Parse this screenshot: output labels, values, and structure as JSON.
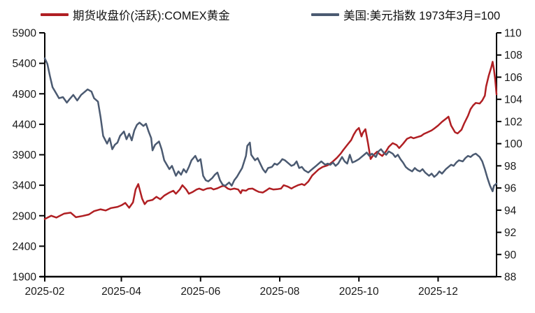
{
  "legend": {
    "item1": "期货收盘价(活跃):COMEX黄金",
    "item2": "美国:美元指数 1973年3月=100"
  },
  "chart_data": {
    "type": "line",
    "title": "",
    "grid": false,
    "legend_position": "top",
    "x_axis": {
      "unit": "days since 2025-02-01",
      "range": [
        0,
        348
      ],
      "ticks": [
        {
          "label": "2025-02",
          "day": 0
        },
        {
          "label": "2025-04",
          "day": 59
        },
        {
          "label": "2025-06",
          "day": 120
        },
        {
          "label": "2025-08",
          "day": 181
        },
        {
          "label": "2025-10",
          "day": 242
        },
        {
          "label": "2025-12",
          "day": 303
        }
      ]
    },
    "y_left": {
      "min": 1900,
      "max": 5900,
      "ticks": [
        1900,
        2400,
        2900,
        3400,
        3900,
        4400,
        4900,
        5400,
        5900
      ]
    },
    "y_right": {
      "min": 88,
      "max": 110,
      "ticks": [
        88,
        90,
        92,
        94,
        96,
        98,
        100,
        102,
        104,
        106,
        108,
        110
      ]
    },
    "series": [
      {
        "name": "期货收盘价(活跃):COMEX黄金",
        "axis": "left",
        "color": "#b01f23",
        "points": [
          [
            0,
            2845
          ],
          [
            5,
            2900
          ],
          [
            9,
            2870
          ],
          [
            15,
            2935
          ],
          [
            20,
            2950
          ],
          [
            24,
            2875
          ],
          [
            29,
            2895
          ],
          [
            34,
            2920
          ],
          [
            38,
            2975
          ],
          [
            43,
            3005
          ],
          [
            47,
            2985
          ],
          [
            51,
            3025
          ],
          [
            56,
            3045
          ],
          [
            59,
            3070
          ],
          [
            62,
            3110
          ],
          [
            65,
            3030
          ],
          [
            68,
            3120
          ],
          [
            70,
            3330
          ],
          [
            72,
            3420
          ],
          [
            75,
            3180
          ],
          [
            77,
            3090
          ],
          [
            79,
            3140
          ],
          [
            83,
            3160
          ],
          [
            86,
            3210
          ],
          [
            89,
            3170
          ],
          [
            92,
            3230
          ],
          [
            96,
            3280
          ],
          [
            99,
            3310
          ],
          [
            101,
            3260
          ],
          [
            104,
            3330
          ],
          [
            106,
            3400
          ],
          [
            109,
            3330
          ],
          [
            111,
            3260
          ],
          [
            114,
            3290
          ],
          [
            117,
            3330
          ],
          [
            119,
            3345
          ],
          [
            122,
            3320
          ],
          [
            125,
            3345
          ],
          [
            128,
            3355
          ],
          [
            130,
            3330
          ],
          [
            133,
            3350
          ],
          [
            136,
            3380
          ],
          [
            138,
            3395
          ],
          [
            141,
            3345
          ],
          [
            143,
            3330
          ],
          [
            146,
            3345
          ],
          [
            149,
            3330
          ],
          [
            151,
            3270
          ],
          [
            152,
            3320
          ],
          [
            155,
            3310
          ],
          [
            157,
            3340
          ],
          [
            160,
            3345
          ],
          [
            163,
            3310
          ],
          [
            165,
            3290
          ],
          [
            168,
            3280
          ],
          [
            171,
            3320
          ],
          [
            173,
            3350
          ],
          [
            176,
            3330
          ],
          [
            179,
            3335
          ],
          [
            182,
            3345
          ],
          [
            184,
            3400
          ],
          [
            187,
            3380
          ],
          [
            190,
            3345
          ],
          [
            192,
            3370
          ],
          [
            195,
            3400
          ],
          [
            198,
            3420
          ],
          [
            200,
            3400
          ],
          [
            203,
            3460
          ],
          [
            206,
            3560
          ],
          [
            209,
            3620
          ],
          [
            211,
            3660
          ],
          [
            214,
            3700
          ],
          [
            217,
            3720
          ],
          [
            219,
            3740
          ],
          [
            222,
            3790
          ],
          [
            225,
            3850
          ],
          [
            228,
            3920
          ],
          [
            230,
            3980
          ],
          [
            233,
            4060
          ],
          [
            236,
            4140
          ],
          [
            238,
            4230
          ],
          [
            240,
            4300
          ],
          [
            242,
            4340
          ],
          [
            244,
            4200
          ],
          [
            245,
            4260
          ],
          [
            247,
            4320
          ],
          [
            249,
            4090
          ],
          [
            251,
            3830
          ],
          [
            253,
            3890
          ],
          [
            256,
            3950
          ],
          [
            258,
            3910
          ],
          [
            260,
            3880
          ],
          [
            263,
            3960
          ],
          [
            265,
            4030
          ],
          [
            268,
            4090
          ],
          [
            271,
            4060
          ],
          [
            273,
            4010
          ],
          [
            276,
            4080
          ],
          [
            279,
            4160
          ],
          [
            282,
            4190
          ],
          [
            284,
            4170
          ],
          [
            287,
            4190
          ],
          [
            290,
            4210
          ],
          [
            292,
            4240
          ],
          [
            295,
            4270
          ],
          [
            298,
            4300
          ],
          [
            300,
            4330
          ],
          [
            303,
            4380
          ],
          [
            306,
            4440
          ],
          [
            309,
            4490
          ],
          [
            311,
            4525
          ],
          [
            313,
            4380
          ],
          [
            316,
            4270
          ],
          [
            318,
            4250
          ],
          [
            321,
            4310
          ],
          [
            323,
            4410
          ],
          [
            326,
            4540
          ],
          [
            328,
            4650
          ],
          [
            330,
            4710
          ],
          [
            332,
            4750
          ],
          [
            335,
            4740
          ],
          [
            337,
            4790
          ],
          [
            339,
            4870
          ],
          [
            340,
            5020
          ],
          [
            342,
            5200
          ],
          [
            344,
            5340
          ],
          [
            345,
            5425
          ],
          [
            346,
            5300
          ],
          [
            347,
            5130
          ],
          [
            348,
            4890
          ]
        ]
      },
      {
        "name": "美国:美元指数 1973年3月=100",
        "axis": "right",
        "color": "#4b5a71",
        "points": [
          [
            0,
            107.7
          ],
          [
            2,
            107.2
          ],
          [
            4,
            106.1
          ],
          [
            6,
            105.1
          ],
          [
            9,
            104.5
          ],
          [
            11,
            104.1
          ],
          [
            14,
            104.2
          ],
          [
            17,
            103.7
          ],
          [
            19,
            104.0
          ],
          [
            22,
            104.4
          ],
          [
            25,
            103.9
          ],
          [
            28,
            104.4
          ],
          [
            30,
            104.6
          ],
          [
            33,
            104.9
          ],
          [
            36,
            104.7
          ],
          [
            38,
            104.1
          ],
          [
            41,
            103.8
          ],
          [
            43,
            102.4
          ],
          [
            45,
            100.7
          ],
          [
            48,
            100.0
          ],
          [
            50,
            100.5
          ],
          [
            52,
            99.5
          ],
          [
            54,
            99.9
          ],
          [
            56,
            100.1
          ],
          [
            58,
            100.7
          ],
          [
            61,
            101.1
          ],
          [
            63,
            100.4
          ],
          [
            65,
            100.9
          ],
          [
            67,
            100.3
          ],
          [
            69,
            101.2
          ],
          [
            71,
            101.7
          ],
          [
            73,
            101.9
          ],
          [
            76,
            101.6
          ],
          [
            78,
            101.8
          ],
          [
            80,
            101.1
          ],
          [
            82,
            100.5
          ],
          [
            83,
            99.4
          ],
          [
            85,
            99.9
          ],
          [
            88,
            100.2
          ],
          [
            90,
            99.5
          ],
          [
            92,
            98.5
          ],
          [
            94,
            98.1
          ],
          [
            96,
            97.7
          ],
          [
            98,
            98.0
          ],
          [
            101,
            97.1
          ],
          [
            103,
            97.5
          ],
          [
            105,
            97.2
          ],
          [
            107,
            97.7
          ],
          [
            109,
            97.4
          ],
          [
            111,
            97.9
          ],
          [
            113,
            98.5
          ],
          [
            116,
            98.9
          ],
          [
            118,
            98.4
          ],
          [
            120,
            98.6
          ],
          [
            122,
            97.1
          ],
          [
            124,
            96.7
          ],
          [
            126,
            96.6
          ],
          [
            129,
            96.9
          ],
          [
            131,
            97.2
          ],
          [
            133,
            97.4
          ],
          [
            135,
            96.7
          ],
          [
            137,
            96.3
          ],
          [
            139,
            96.2
          ],
          [
            142,
            96.5
          ],
          [
            144,
            96.2
          ],
          [
            146,
            96.7
          ],
          [
            148,
            97.0
          ],
          [
            150,
            97.4
          ],
          [
            152,
            97.8
          ],
          [
            155,
            98.9
          ],
          [
            156,
            99.8
          ],
          [
            158,
            100.1
          ],
          [
            159,
            99.0
          ],
          [
            162,
            98.5
          ],
          [
            164,
            98.7
          ],
          [
            166,
            98.2
          ],
          [
            168,
            97.7
          ],
          [
            170,
            97.4
          ],
          [
            172,
            97.8
          ],
          [
            175,
            97.9
          ],
          [
            177,
            98.2
          ],
          [
            179,
            98.1
          ],
          [
            181,
            98.3
          ],
          [
            183,
            98.6
          ],
          [
            185,
            98.5
          ],
          [
            188,
            98.2
          ],
          [
            190,
            98.0
          ],
          [
            192,
            98.1
          ],
          [
            194,
            98.4
          ],
          [
            196,
            97.8
          ],
          [
            198,
            97.9
          ],
          [
            200,
            97.6
          ],
          [
            203,
            97.4
          ],
          [
            205,
            97.6
          ],
          [
            207,
            97.8
          ],
          [
            209,
            98.0
          ],
          [
            211,
            98.2
          ],
          [
            213,
            98.4
          ],
          [
            216,
            98.1
          ],
          [
            218,
            98.2
          ],
          [
            220,
            98.1
          ],
          [
            222,
            98.3
          ],
          [
            224,
            98.0
          ],
          [
            226,
            98.2
          ],
          [
            229,
            98.8
          ],
          [
            231,
            98.4
          ],
          [
            233,
            98.2
          ],
          [
            235,
            99.0
          ],
          [
            237,
            98.3
          ],
          [
            239,
            98.4
          ],
          [
            242,
            98.6
          ],
          [
            244,
            98.8
          ],
          [
            246,
            99.0
          ],
          [
            248,
            99.2
          ],
          [
            250,
            98.9
          ],
          [
            252,
            99.1
          ],
          [
            255,
            98.8
          ],
          [
            257,
            99.3
          ],
          [
            259,
            99.5
          ],
          [
            261,
            99.2
          ],
          [
            263,
            99.0
          ],
          [
            265,
            99.3
          ],
          [
            268,
            99.1
          ],
          [
            270,
            98.8
          ],
          [
            272,
            99.0
          ],
          [
            274,
            98.6
          ],
          [
            276,
            98.3
          ],
          [
            278,
            97.9
          ],
          [
            280,
            97.7
          ],
          [
            283,
            97.5
          ],
          [
            285,
            97.8
          ],
          [
            287,
            97.6
          ],
          [
            289,
            97.5
          ],
          [
            291,
            97.7
          ],
          [
            293,
            97.4
          ],
          [
            296,
            97.1
          ],
          [
            298,
            97.3
          ],
          [
            300,
            97.0
          ],
          [
            302,
            97.2
          ],
          [
            304,
            97.5
          ],
          [
            306,
            97.3
          ],
          [
            309,
            97.7
          ],
          [
            311,
            97.9
          ],
          [
            313,
            98.1
          ],
          [
            315,
            98.0
          ],
          [
            317,
            98.3
          ],
          [
            319,
            98.5
          ],
          [
            322,
            98.4
          ],
          [
            324,
            98.7
          ],
          [
            326,
            98.9
          ],
          [
            328,
            98.8
          ],
          [
            330,
            99.0
          ],
          [
            332,
            99.1
          ],
          [
            335,
            98.8
          ],
          [
            337,
            98.4
          ],
          [
            339,
            97.7
          ],
          [
            341,
            96.9
          ],
          [
            343,
            96.2
          ],
          [
            345,
            95.7
          ],
          [
            346,
            96.2
          ],
          [
            348,
            96.4
          ]
        ]
      }
    ]
  }
}
